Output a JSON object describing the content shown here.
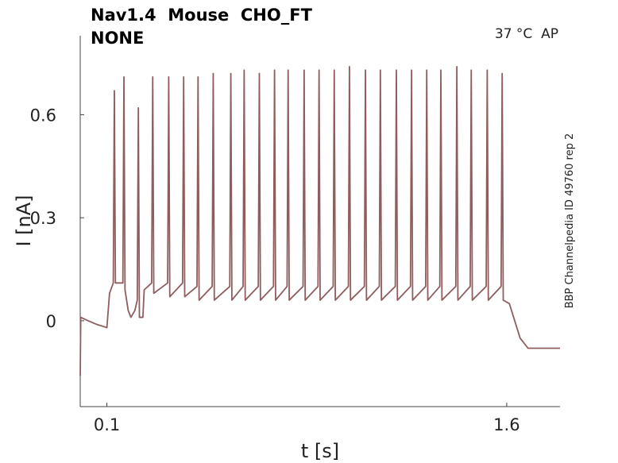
{
  "chart_data": {
    "type": "line",
    "title": "Nav1.4  Mouse  CHO_FT",
    "subtitle": "NONE",
    "annotation": "37 °C  AP",
    "side_note": "BBP Channelpedia ID 49760 rep 2",
    "x_label": "t [s]",
    "y_label": "I [nA]",
    "xlim": [
      0,
      1.8
    ],
    "ylim": [
      -0.25,
      0.83
    ],
    "xticks": [
      0.1,
      1.6
    ],
    "yticks": [
      0,
      0.3,
      0.6
    ],
    "grid": false,
    "color": "#8f5d5d",
    "x": [
      0,
      0.002,
      0.03,
      0.06,
      0.1,
      0.11,
      0.124,
      0.128,
      0.132,
      0.16,
      0.164,
      0.168,
      0.18,
      0.19,
      0.205,
      0.214,
      0.218,
      0.222,
      0.235,
      0.24,
      0.268,
      0.272,
      0.276,
      0.328,
      0.332,
      0.336,
      0.384,
      0.388,
      0.392,
      0.438,
      0.442,
      0.446,
      0.495,
      0.499,
      0.503,
      0.561,
      0.565,
      0.569,
      0.611,
      0.615,
      0.619,
      0.668,
      0.672,
      0.676,
      0.725,
      0.729,
      0.733,
      0.776,
      0.78,
      0.784,
      0.836,
      0.84,
      0.844,
      0.892,
      0.896,
      0.9,
      0.949,
      0.953,
      0.957,
      1.006,
      1.01,
      1.014,
      1.066,
      1.07,
      1.074,
      1.122,
      1.126,
      1.13,
      1.182,
      1.186,
      1.19,
      1.239,
      1.243,
      1.247,
      1.296,
      1.3,
      1.304,
      1.349,
      1.353,
      1.357,
      1.409,
      1.413,
      1.417,
      1.463,
      1.467,
      1.471,
      1.523,
      1.527,
      1.531,
      1.579,
      1.583,
      1.587,
      1.61,
      1.63,
      1.65,
      1.68,
      1.8
    ],
    "values": [
      -0.16,
      0.01,
      0,
      -0.01,
      -0.02,
      0.08,
      0.11,
      0.67,
      0.11,
      0.11,
      0.71,
      0.09,
      0.03,
      0.01,
      0.03,
      0.06,
      0.62,
      0.01,
      0.01,
      0.09,
      0.11,
      0.71,
      0.08,
      0.11,
      0.71,
      0.07,
      0.11,
      0.71,
      0.07,
      0.1,
      0.71,
      0.06,
      0.1,
      0.72,
      0.06,
      0.1,
      0.72,
      0.06,
      0.1,
      0.73,
      0.06,
      0.1,
      0.72,
      0.06,
      0.1,
      0.73,
      0.06,
      0.1,
      0.73,
      0.06,
      0.1,
      0.73,
      0.06,
      0.1,
      0.73,
      0.06,
      0.1,
      0.73,
      0.06,
      0.1,
      0.74,
      0.06,
      0.1,
      0.73,
      0.06,
      0.1,
      0.73,
      0.06,
      0.1,
      0.73,
      0.06,
      0.1,
      0.73,
      0.06,
      0.1,
      0.73,
      0.06,
      0.1,
      0.73,
      0.06,
      0.1,
      0.74,
      0.06,
      0.1,
      0.73,
      0.06,
      0.1,
      0.73,
      0.06,
      0.1,
      0.72,
      0.06,
      0.05,
      0,
      -0.05,
      -0.08,
      -0.08
    ]
  }
}
